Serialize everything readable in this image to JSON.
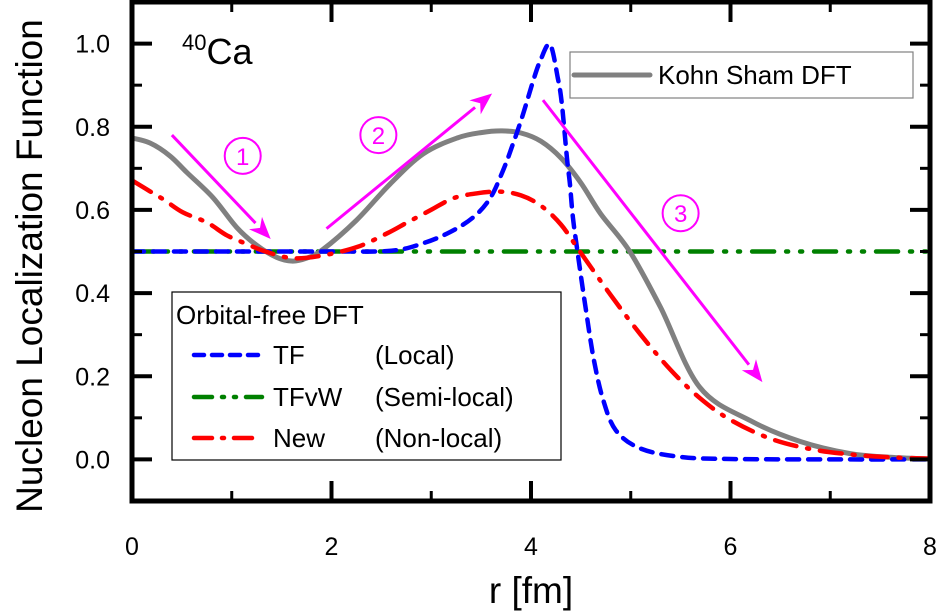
{
  "chart_data": {
    "type": "line",
    "title": "",
    "annotation": {
      "isotope_mass": "40",
      "isotope_symbol": "Ca"
    },
    "xlabel": "r [fm]",
    "ylabel": "Nucleon Localization Function",
    "xlim": [
      0,
      8
    ],
    "ylim": [
      -0.1,
      1.1
    ],
    "xticks": [
      0,
      2,
      4,
      6,
      8
    ],
    "xtick_labels": [
      "0",
      "2",
      "4",
      "6",
      "8"
    ],
    "xminor": [
      1,
      3,
      5,
      7
    ],
    "yticks": [
      0.0,
      0.2,
      0.4,
      0.6,
      0.8,
      1.0
    ],
    "ytick_labels": [
      "0.0",
      "0.2",
      "0.4",
      "0.6",
      "0.8",
      "1.0"
    ],
    "yminor": [
      0.1,
      0.3,
      0.5,
      0.7,
      0.9
    ],
    "grid": false,
    "series": [
      {
        "name": "Kohn Sham DFT",
        "style": "solid",
        "color": "#808080",
        "x": [
          0,
          0.18,
          0.38,
          0.55,
          0.81,
          1.05,
          1.25,
          1.45,
          1.61,
          1.75,
          1.91,
          2.25,
          2.59,
          2.92,
          3.26,
          3.5,
          3.71,
          3.9,
          4.1,
          4.3,
          4.5,
          4.7,
          4.99,
          5.3,
          5.69,
          6.2,
          6.7,
          7.2,
          7.6,
          8.0
        ],
        "y": [
          0.773,
          0.761,
          0.73,
          0.69,
          0.63,
          0.558,
          0.515,
          0.486,
          0.477,
          0.484,
          0.504,
          0.575,
          0.663,
          0.735,
          0.773,
          0.786,
          0.79,
          0.785,
          0.765,
          0.725,
          0.665,
          0.59,
          0.5,
          0.365,
          0.174,
          0.093,
          0.043,
          0.014,
          0.005,
          0.001
        ]
      },
      {
        "name": "TF (Local)",
        "style": "dashed",
        "color": "#0000FF",
        "x": [
          0,
          1.0,
          2.0,
          2.6,
          2.92,
          3.19,
          3.42,
          3.59,
          3.72,
          3.82,
          3.92,
          4.02,
          4.09,
          4.19,
          4.27,
          4.31,
          4.36,
          4.39,
          4.42,
          4.46,
          4.55,
          4.63,
          4.72,
          4.85,
          5.1,
          5.5,
          6.0,
          7.0,
          8.0
        ],
        "y": [
          0.5,
          0.5,
          0.5,
          0.502,
          0.52,
          0.547,
          0.582,
          0.628,
          0.695,
          0.759,
          0.83,
          0.909,
          0.957,
          0.998,
          0.916,
          0.854,
          0.726,
          0.663,
          0.582,
          0.51,
          0.36,
          0.24,
          0.146,
          0.07,
          0.026,
          0.006,
          0.001,
          0.0,
          0.0
        ]
      },
      {
        "name": "TFvW (Semi-local)",
        "style": "dash-dot-dot",
        "color": "#008000",
        "x": [
          0,
          8
        ],
        "y": [
          0.5,
          0.5
        ]
      },
      {
        "name": "New (Non-local)",
        "style": "dash-dot",
        "color": "#FF0000",
        "x": [
          0,
          0.2,
          0.33,
          0.51,
          0.75,
          0.95,
          1.15,
          1.35,
          1.61,
          1.9,
          2.26,
          2.56,
          2.76,
          2.99,
          3.22,
          3.46,
          3.69,
          3.9,
          4.1,
          4.3,
          4.49,
          4.8,
          5.1,
          5.4,
          5.7,
          6.0,
          6.4,
          6.8,
          7.2,
          7.6,
          8.0
        ],
        "y": [
          0.671,
          0.642,
          0.623,
          0.594,
          0.57,
          0.539,
          0.518,
          0.499,
          0.484,
          0.49,
          0.511,
          0.544,
          0.57,
          0.599,
          0.628,
          0.64,
          0.644,
          0.635,
          0.61,
          0.565,
          0.5,
          0.395,
          0.3,
          0.215,
          0.146,
          0.095,
          0.05,
          0.025,
          0.012,
          0.005,
          0.002
        ]
      }
    ],
    "legends": [
      {
        "placement": "top-right",
        "entries": [
          {
            "series": "Kohn Sham DFT",
            "label": "Kohn Sham DFT"
          }
        ]
      },
      {
        "placement": "bottom-left",
        "title": "Orbital-free DFT",
        "entries": [
          {
            "series": "TF (Local)",
            "name": "TF",
            "qualifier": "(Local)"
          },
          {
            "series": "TFvW (Semi-local)",
            "name": "TFvW",
            "qualifier": "(Semi-local)"
          },
          {
            "series": "New (Non-local)",
            "name": "New",
            "qualifier": "(Non-local)"
          }
        ]
      }
    ],
    "arrows": [
      {
        "label": "1",
        "from": [
          0.4,
          0.78
        ],
        "to": [
          1.39,
          0.53
        ],
        "label_at": [
          1.11,
          0.73
        ]
      },
      {
        "label": "2",
        "from": [
          1.95,
          0.555
        ],
        "to": [
          3.61,
          0.88
        ],
        "label_at": [
          2.47,
          0.78
        ]
      },
      {
        "label": "3",
        "from": [
          4.12,
          0.864
        ],
        "to": [
          6.32,
          0.186
        ],
        "label_at": [
          5.5,
          0.592
        ]
      }
    ],
    "annotation_color": "#FF00FF"
  }
}
